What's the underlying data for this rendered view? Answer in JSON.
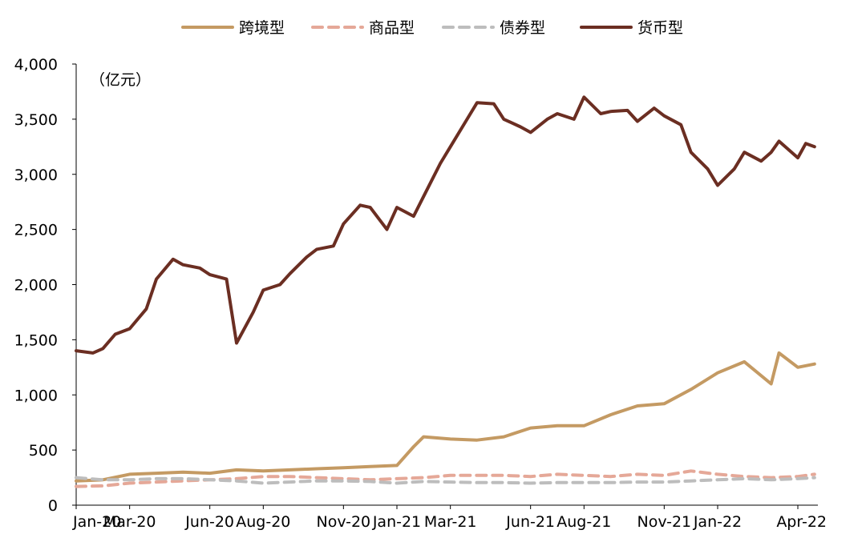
{
  "chart_data": {
    "type": "line",
    "unit_label": "（亿元）",
    "x_ticks": [
      "Jan-20",
      "Mar-20",
      "Jun-20",
      "Aug-20",
      "Nov-20",
      "Jan-21",
      "Mar-21",
      "Jun-21",
      "Aug-21",
      "Nov-21",
      "Jan-22",
      "Apr-22"
    ],
    "y_ticks": [
      "0",
      "500",
      "1,000",
      "1,500",
      "2,000",
      "2,500",
      "3,000",
      "3,500",
      "4,000"
    ],
    "ylim": [
      0,
      4000
    ],
    "x_range": [
      "2020-01",
      "2022-04"
    ],
    "legend": {
      "position": "top"
    },
    "grid": false,
    "series": [
      {
        "name": "跨境型",
        "color": "#C49A63",
        "dash": "solid",
        "points": [
          [
            "2020-01",
            220
          ],
          [
            "2020-02",
            230
          ],
          [
            "2020-03",
            280
          ],
          [
            "2020-04",
            290
          ],
          [
            "2020-05",
            300
          ],
          [
            "2020-06",
            290
          ],
          [
            "2020-07",
            320
          ],
          [
            "2020-08",
            310
          ],
          [
            "2020-09",
            320
          ],
          [
            "2020-10",
            330
          ],
          [
            "2020-11",
            340
          ],
          [
            "2020-12",
            350
          ],
          [
            "2021-01",
            360
          ],
          [
            "2021-01-20",
            530
          ],
          [
            "2021-02",
            620
          ],
          [
            "2021-03",
            600
          ],
          [
            "2021-04",
            590
          ],
          [
            "2021-05",
            620
          ],
          [
            "2021-06",
            700
          ],
          [
            "2021-07",
            720
          ],
          [
            "2021-08",
            720
          ],
          [
            "2021-09",
            820
          ],
          [
            "2021-10",
            900
          ],
          [
            "2021-11",
            920
          ],
          [
            "2021-12",
            1050
          ],
          [
            "2022-01",
            1200
          ],
          [
            "2022-02",
            1300
          ],
          [
            "2022-03",
            1100
          ],
          [
            "2022-03-10",
            1380
          ],
          [
            "2022-04",
            1250
          ],
          [
            "2022-04-20",
            1280
          ]
        ]
      },
      {
        "name": "商品型",
        "color": "#E5A898",
        "dash": "dashed",
        "points": [
          [
            "2020-01",
            170
          ],
          [
            "2020-02",
            175
          ],
          [
            "2020-03",
            200
          ],
          [
            "2020-04",
            210
          ],
          [
            "2020-05",
            220
          ],
          [
            "2020-06",
            230
          ],
          [
            "2020-07",
            240
          ],
          [
            "2020-08",
            260
          ],
          [
            "2020-09",
            260
          ],
          [
            "2020-10",
            250
          ],
          [
            "2020-11",
            240
          ],
          [
            "2020-12",
            230
          ],
          [
            "2021-01",
            240
          ],
          [
            "2021-02",
            250
          ],
          [
            "2021-03",
            270
          ],
          [
            "2021-04",
            270
          ],
          [
            "2021-05",
            270
          ],
          [
            "2021-06",
            260
          ],
          [
            "2021-07",
            280
          ],
          [
            "2021-08",
            270
          ],
          [
            "2021-09",
            260
          ],
          [
            "2021-10",
            280
          ],
          [
            "2021-11",
            270
          ],
          [
            "2021-12",
            310
          ],
          [
            "2022-01",
            280
          ],
          [
            "2022-02",
            260
          ],
          [
            "2022-03",
            250
          ],
          [
            "2022-04",
            260
          ],
          [
            "2022-04-20",
            280
          ]
        ]
      },
      {
        "name": "债券型",
        "color": "#BDBDBD",
        "dash": "dashed",
        "points": [
          [
            "2020-01",
            250
          ],
          [
            "2020-02",
            230
          ],
          [
            "2020-03",
            230
          ],
          [
            "2020-04",
            240
          ],
          [
            "2020-05",
            240
          ],
          [
            "2020-06",
            230
          ],
          [
            "2020-07",
            220
          ],
          [
            "2020-08",
            200
          ],
          [
            "2020-09",
            210
          ],
          [
            "2020-10",
            220
          ],
          [
            "2020-11",
            220
          ],
          [
            "2020-12",
            215
          ],
          [
            "2021-01",
            200
          ],
          [
            "2021-02",
            215
          ],
          [
            "2021-03",
            210
          ],
          [
            "2021-04",
            205
          ],
          [
            "2021-05",
            205
          ],
          [
            "2021-06",
            200
          ],
          [
            "2021-07",
            205
          ],
          [
            "2021-08",
            205
          ],
          [
            "2021-09",
            205
          ],
          [
            "2021-10",
            210
          ],
          [
            "2021-11",
            210
          ],
          [
            "2021-12",
            220
          ],
          [
            "2022-01",
            230
          ],
          [
            "2022-02",
            240
          ],
          [
            "2022-03",
            230
          ],
          [
            "2022-04",
            240
          ],
          [
            "2022-04-20",
            250
          ]
        ]
      },
      {
        "name": "货币型",
        "color": "#6B2E22",
        "dash": "solid",
        "points": [
          [
            "2020-01",
            1400
          ],
          [
            "2020-01-20",
            1380
          ],
          [
            "2020-02",
            1420
          ],
          [
            "2020-02-15",
            1550
          ],
          [
            "2020-03",
            1600
          ],
          [
            "2020-03-20",
            1780
          ],
          [
            "2020-04",
            2050
          ],
          [
            "2020-04-20",
            2230
          ],
          [
            "2020-05",
            2180
          ],
          [
            "2020-05-20",
            2150
          ],
          [
            "2020-06",
            2090
          ],
          [
            "2020-06-20",
            2050
          ],
          [
            "2020-07",
            1470
          ],
          [
            "2020-07-20",
            1750
          ],
          [
            "2020-08",
            1950
          ],
          [
            "2020-08-20",
            2000
          ],
          [
            "2020-09",
            2100
          ],
          [
            "2020-09-20",
            2250
          ],
          [
            "2020-10",
            2320
          ],
          [
            "2020-10-20",
            2350
          ],
          [
            "2020-11",
            2550
          ],
          [
            "2020-11-20",
            2720
          ],
          [
            "2020-12",
            2700
          ],
          [
            "2020-12-20",
            2500
          ],
          [
            "2021-01",
            2700
          ],
          [
            "2021-01-20",
            2620
          ],
          [
            "2021-02",
            2800
          ],
          [
            "2021-02-20",
            3100
          ],
          [
            "2021-03",
            3250
          ],
          [
            "2021-03-20",
            3500
          ],
          [
            "2021-04",
            3650
          ],
          [
            "2021-04-20",
            3640
          ],
          [
            "2021-05",
            3500
          ],
          [
            "2021-05-20",
            3430
          ],
          [
            "2021-06",
            3380
          ],
          [
            "2021-06-20",
            3500
          ],
          [
            "2021-07",
            3550
          ],
          [
            "2021-07-20",
            3500
          ],
          [
            "2021-08",
            3700
          ],
          [
            "2021-08-20",
            3550
          ],
          [
            "2021-09",
            3570
          ],
          [
            "2021-09-20",
            3580
          ],
          [
            "2021-10",
            3480
          ],
          [
            "2021-10-20",
            3600
          ],
          [
            "2021-11",
            3530
          ],
          [
            "2021-11-20",
            3450
          ],
          [
            "2021-12",
            3200
          ],
          [
            "2021-12-20",
            3050
          ],
          [
            "2022-01",
            2900
          ],
          [
            "2022-01-20",
            3050
          ],
          [
            "2022-02",
            3200
          ],
          [
            "2022-02-20",
            3120
          ],
          [
            "2022-03",
            3200
          ],
          [
            "2022-03-10",
            3300
          ],
          [
            "2022-04",
            3150
          ],
          [
            "2022-04-10",
            3280
          ],
          [
            "2022-04-20",
            3250
          ]
        ]
      }
    ]
  }
}
